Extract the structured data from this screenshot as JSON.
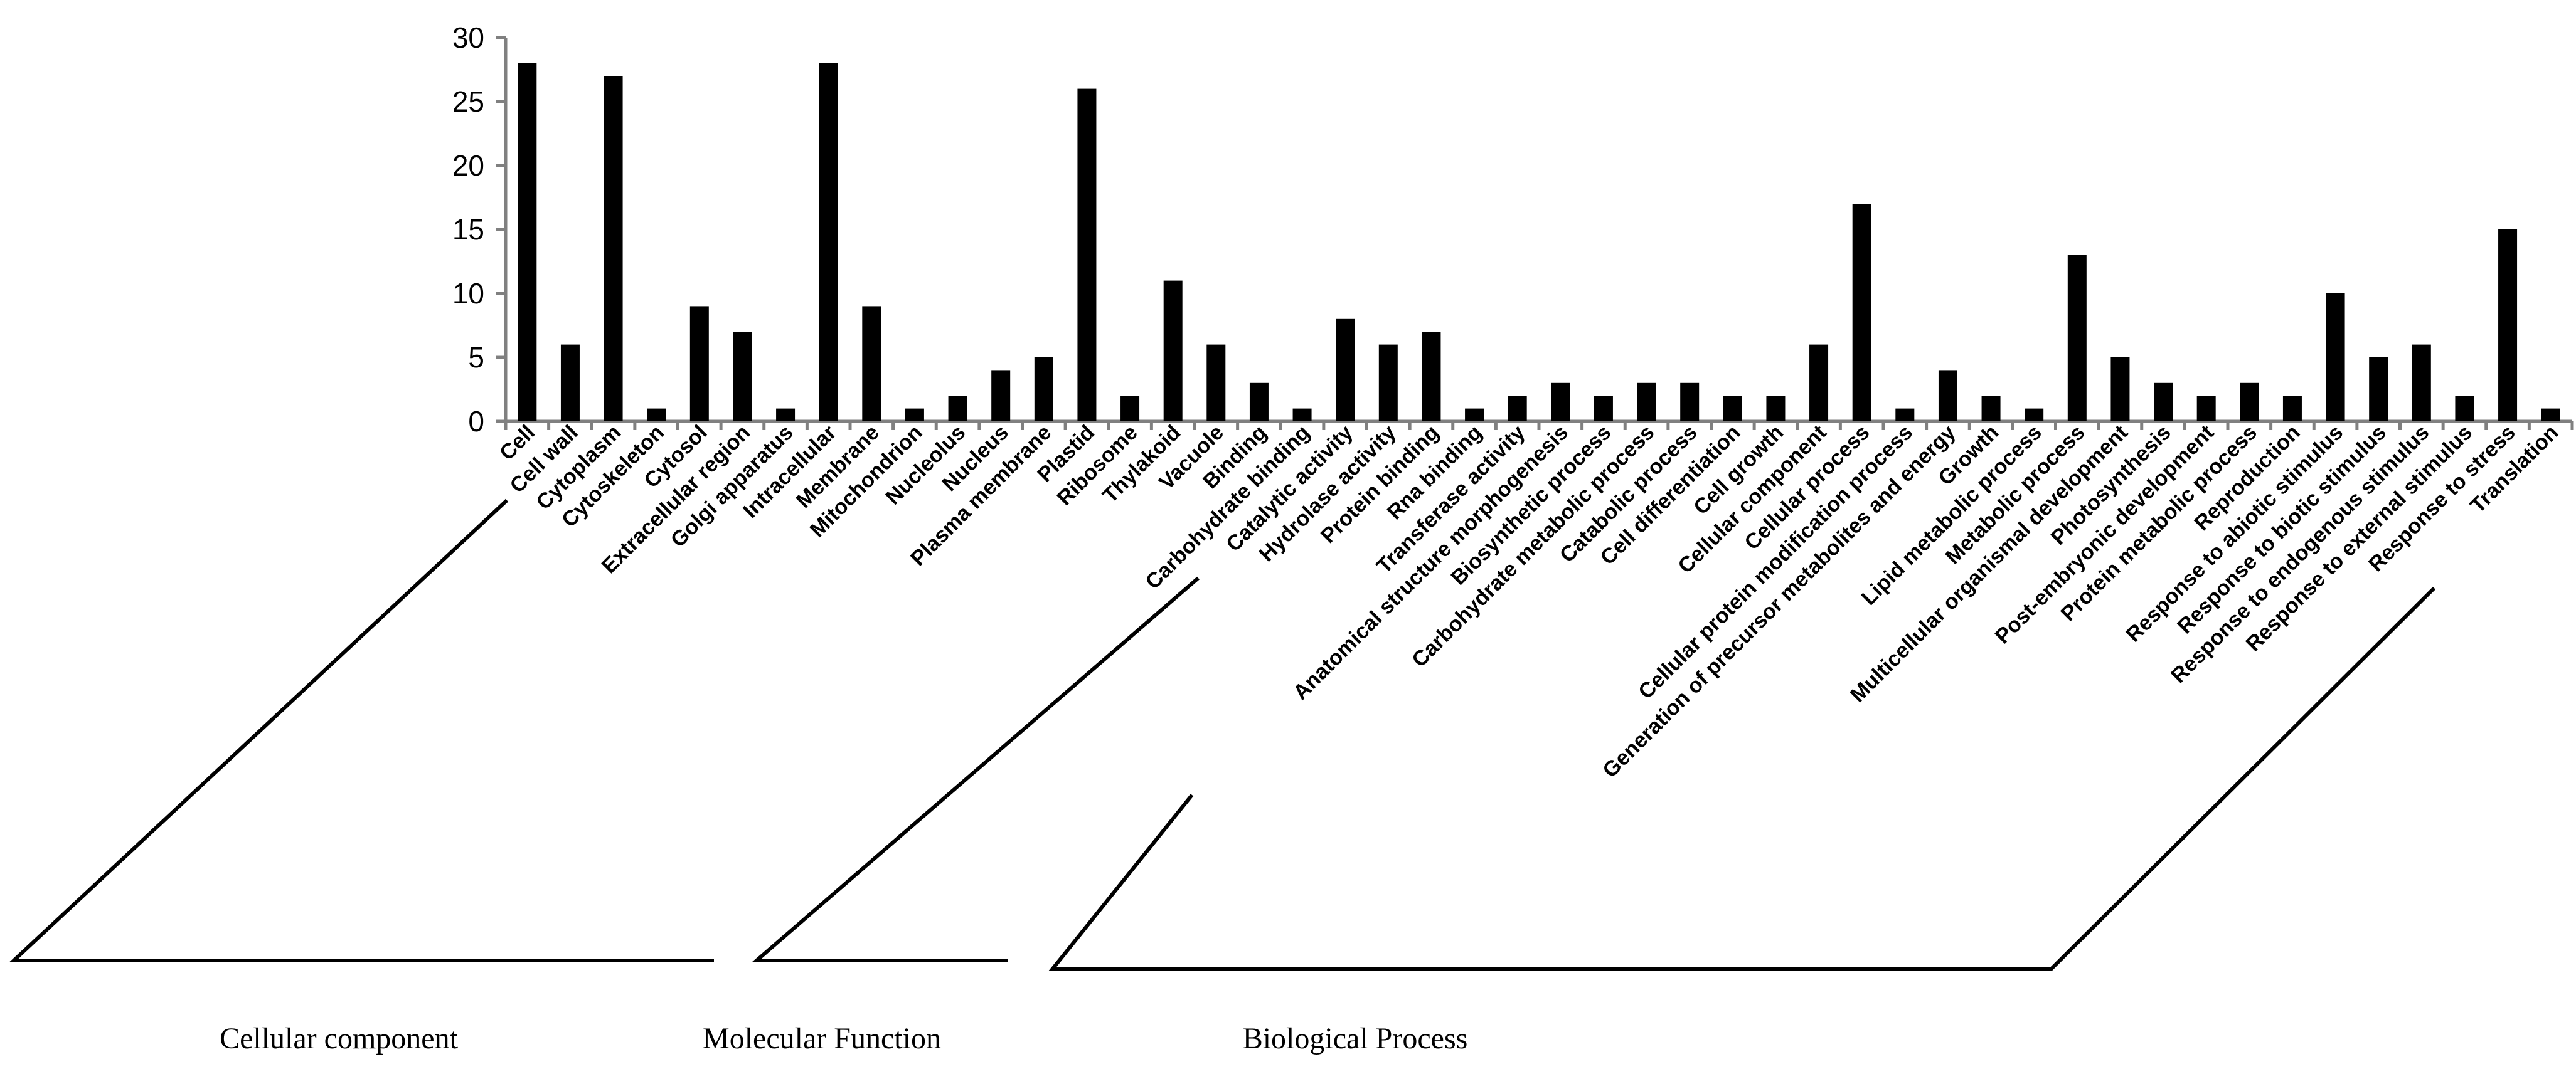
{
  "chart_data": {
    "type": "bar",
    "title": "",
    "xlabel": "",
    "ylabel": "",
    "ylim": [
      0,
      30
    ],
    "yticks": [
      0,
      5,
      10,
      15,
      20,
      25,
      30
    ],
    "grid": false,
    "legend": "none",
    "bar_color": "#000000",
    "categories": [
      "Cell",
      "Cell wall",
      "Cytoplasm",
      "Cytoskeleton",
      "Cytosol",
      "Extracellular region",
      "Golgi apparatus",
      "Intracellular",
      "Membrane",
      "Mitochondrion",
      "Nucleolus",
      "Nucleus",
      "Plasma membrane",
      "Plastid",
      "Ribosome",
      "Thylakoid",
      "Vacuole",
      "Binding",
      "Carbohydrate binding",
      "Catalytic activity",
      "Hydrolase activity",
      "Protein binding",
      "Rna binding",
      "Transferase activity",
      "Anatomical structure morphogenesis",
      "Biosynthetic process",
      "Carbohydrate metabolic process",
      "Catabolic process",
      "Cell differentiation",
      "Cell growth",
      "Cellular component",
      "Cellular process",
      "Cellular protein modification process",
      "Generation of precursor metabolites and energy",
      "Growth",
      "Lipid metabolic process",
      "Metabolic process",
      "Multicellular organismal development",
      "Photosynthesis",
      "Post-embryonic development",
      "Protein metabolic process",
      "Reproduction",
      "Response to abiotic stimulus",
      "Response to biotic stimulus",
      "Response to endogenous stimulus",
      "Response to external stimulus",
      "Response to stress",
      "Translation"
    ],
    "values": [
      28,
      6,
      27,
      1,
      9,
      7,
      1,
      28,
      9,
      1,
      2,
      4,
      5,
      26,
      2,
      11,
      6,
      3,
      1,
      8,
      6,
      7,
      1,
      2,
      3,
      2,
      3,
      3,
      2,
      2,
      6,
      17,
      1,
      4,
      2,
      1,
      13,
      5,
      3,
      2,
      3,
      2,
      10,
      5,
      6,
      2,
      15,
      1
    ],
    "groups": [
      {
        "label": "Cellular component",
        "start": 0,
        "end": 16
      },
      {
        "label": "Molecular Function",
        "start": 17,
        "end": 23
      },
      {
        "label": "Biological Process",
        "start": 24,
        "end": 47
      }
    ]
  }
}
